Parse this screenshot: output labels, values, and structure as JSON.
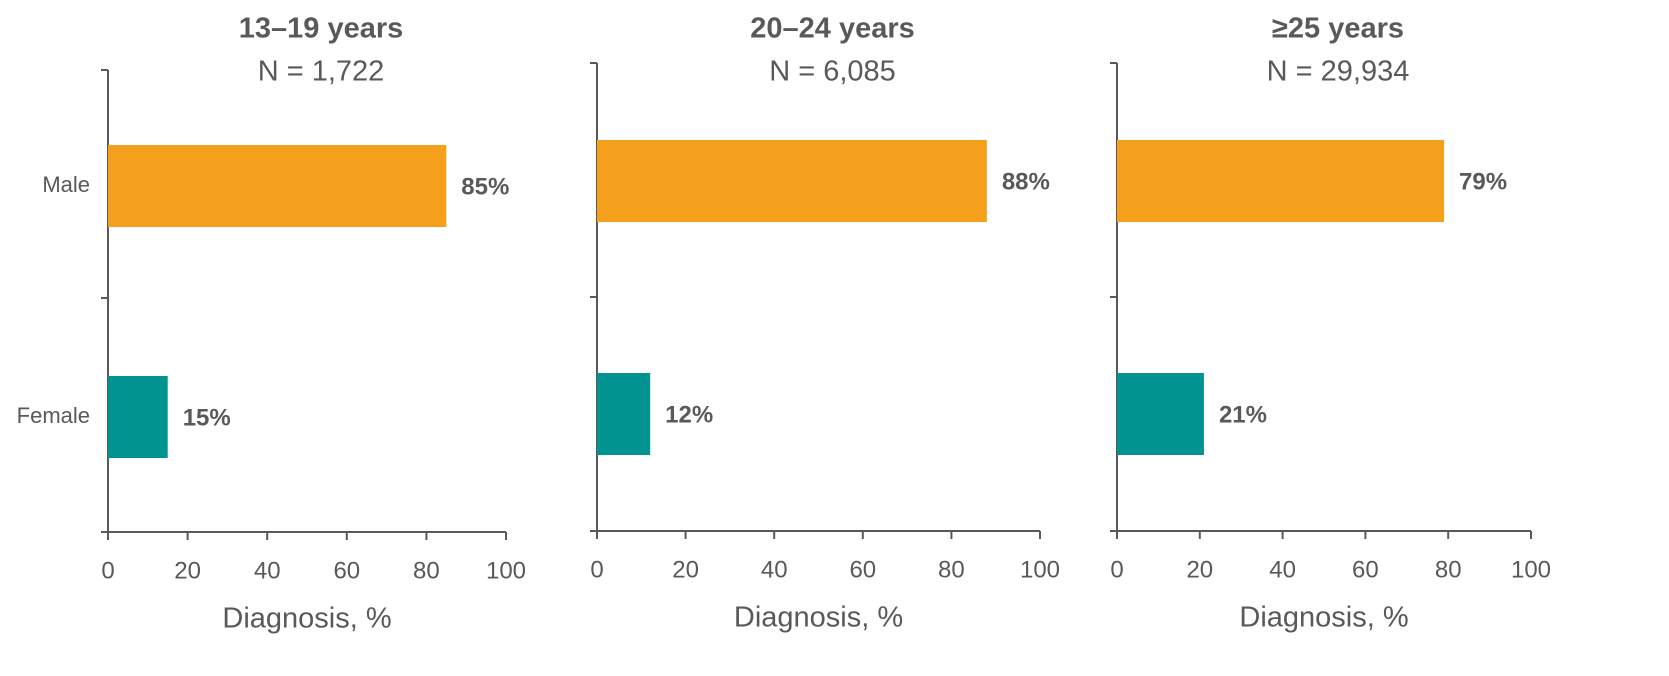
{
  "chart_data": [
    {
      "type": "bar",
      "orientation": "horizontal",
      "title": "13–19 years",
      "subtitle": "N = 1,722",
      "categories": [
        "Male",
        "Female"
      ],
      "values": [
        85,
        15
      ],
      "value_labels": [
        "85%",
        "15%"
      ],
      "colors": [
        "#F4A01C",
        "#009390"
      ],
      "xlabel": "Diagnosis, %",
      "xlim": [
        0,
        100
      ],
      "xticks": [
        "0",
        "20",
        "40",
        "60",
        "80",
        "100"
      ],
      "grid": false,
      "legend": "none"
    },
    {
      "type": "bar",
      "orientation": "horizontal",
      "title": "20–24 years",
      "subtitle": "N = 6,085",
      "categories": [
        "Male",
        "Female"
      ],
      "values": [
        88,
        12
      ],
      "value_labels": [
        "88%",
        "12%"
      ],
      "colors": [
        "#F4A01C",
        "#009390"
      ],
      "xlabel": "Diagnosis, %",
      "xlim": [
        0,
        100
      ],
      "xticks": [
        "0",
        "20",
        "40",
        "60",
        "80",
        "100"
      ],
      "grid": false,
      "legend": "none"
    },
    {
      "type": "bar",
      "orientation": "horizontal",
      "title": "≥25 years",
      "subtitle": "N = 29,934",
      "categories": [
        "Male",
        "Female"
      ],
      "values": [
        79,
        21
      ],
      "value_labels": [
        "79%",
        "21%"
      ],
      "colors": [
        "#F4A01C",
        "#009390"
      ],
      "xlabel": "Diagnosis, %",
      "xlim": [
        0,
        100
      ],
      "xticks": [
        "0",
        "20",
        "40",
        "60",
        "80",
        "100"
      ],
      "grid": false,
      "legend": "none"
    }
  ],
  "colors": {
    "male": "#F4A01C",
    "female": "#009390",
    "text": "#595959",
    "axis": "#595959"
  }
}
